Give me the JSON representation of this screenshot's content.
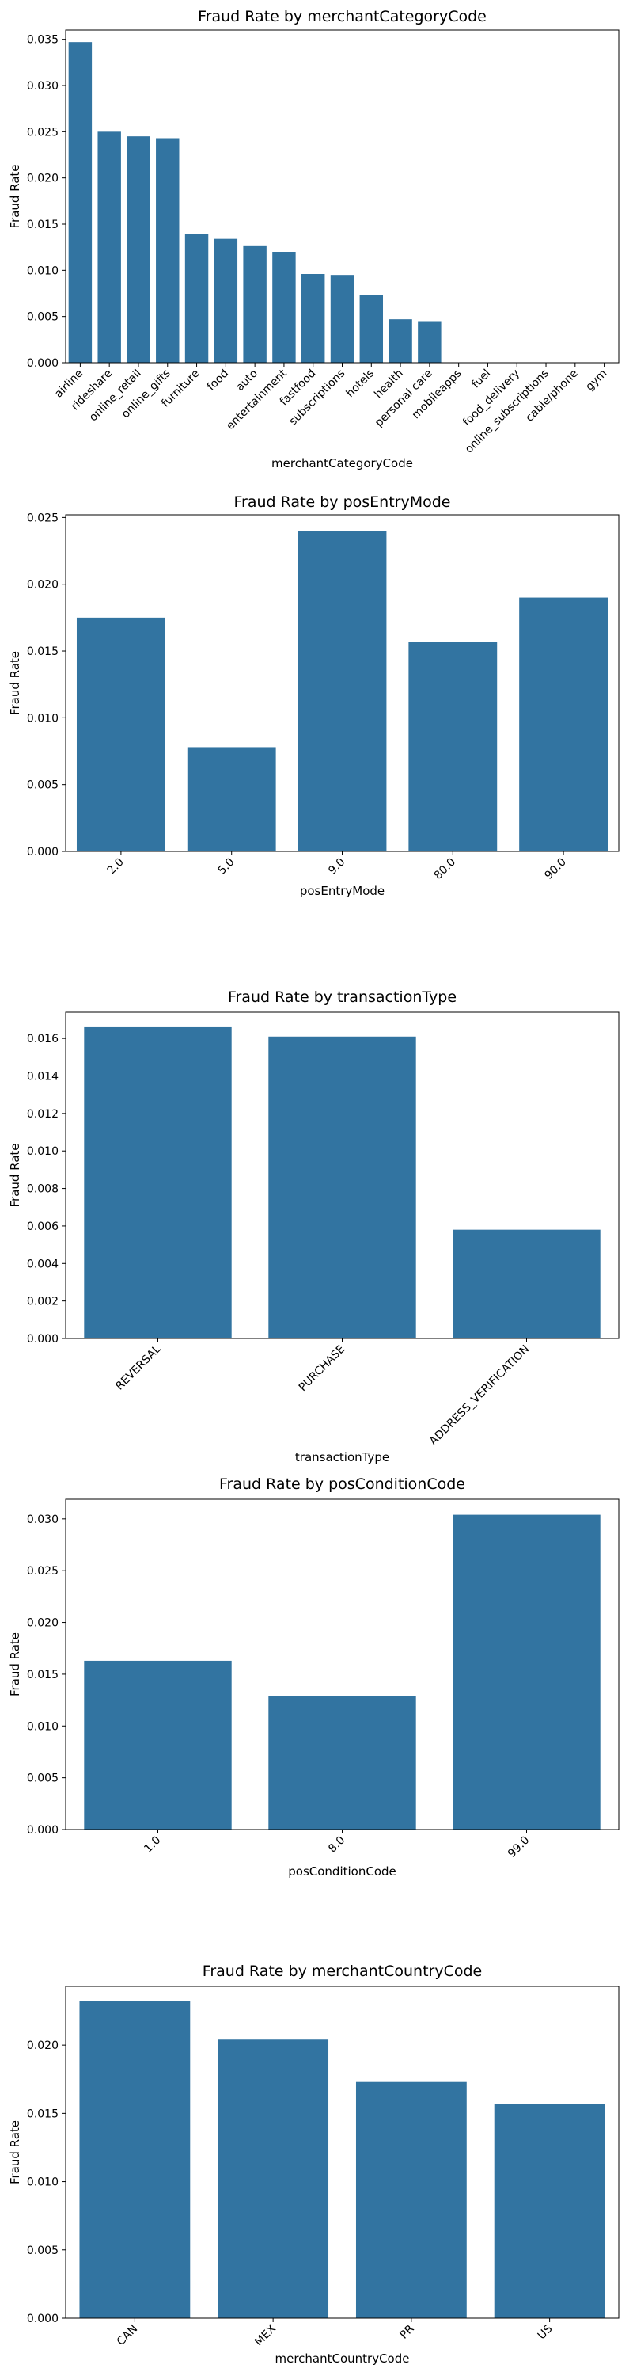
{
  "chart_data": [
    {
      "type": "bar",
      "title": "Fraud Rate by merchantCategoryCode",
      "xlabel": "merchantCategoryCode",
      "ylabel": "Fraud Rate",
      "ylim": [
        0,
        0.036
      ],
      "yticks": [
        "0.000",
        "0.005",
        "0.010",
        "0.015",
        "0.020",
        "0.025",
        "0.030",
        "0.035"
      ],
      "categories": [
        "airline",
        "rideshare",
        "online_retail",
        "online_gifts",
        "furniture",
        "food",
        "auto",
        "entertainment",
        "fastfood",
        "subscriptions",
        "hotels",
        "health",
        "personal care",
        "mobileapps",
        "fuel",
        "food_delivery",
        "online_subscriptions",
        "cable/phone",
        "gym"
      ],
      "values": [
        0.0347,
        0.025,
        0.0245,
        0.0243,
        0.0139,
        0.0134,
        0.0127,
        0.012,
        0.0096,
        0.0095,
        0.0073,
        0.0047,
        0.0045,
        0,
        0,
        0,
        0,
        0,
        0
      ]
    },
    {
      "type": "bar",
      "title": "Fraud Rate by posEntryMode",
      "xlabel": "posEntryMode",
      "ylabel": "Fraud Rate",
      "ylim": [
        0,
        0.0252
      ],
      "yticks": [
        "0.000",
        "0.005",
        "0.010",
        "0.015",
        "0.020",
        "0.025"
      ],
      "categories": [
        "2.0",
        "5.0",
        "9.0",
        "80.0",
        "90.0"
      ],
      "values": [
        0.0175,
        0.0078,
        0.024,
        0.0157,
        0.019
      ]
    },
    {
      "type": "bar",
      "title": "Fraud Rate by transactionType",
      "xlabel": "transactionType",
      "ylabel": "Fraud Rate",
      "ylim": [
        0,
        0.0174
      ],
      "yticks": [
        "0.000",
        "0.002",
        "0.004",
        "0.006",
        "0.008",
        "0.010",
        "0.012",
        "0.014",
        "0.016"
      ],
      "categories": [
        "REVERSAL",
        "PURCHASE",
        "ADDRESS_VERIFICATION"
      ],
      "values": [
        0.0166,
        0.0161,
        0.0058
      ]
    },
    {
      "type": "bar",
      "title": "Fraud Rate by posConditionCode",
      "xlabel": "posConditionCode",
      "ylabel": "Fraud Rate",
      "ylim": [
        0,
        0.0319
      ],
      "yticks": [
        "0.000",
        "0.005",
        "0.010",
        "0.015",
        "0.020",
        "0.025",
        "0.030"
      ],
      "categories": [
        "1.0",
        "8.0",
        "99.0"
      ],
      "values": [
        0.0163,
        0.0129,
        0.0304
      ]
    },
    {
      "type": "bar",
      "title": "Fraud Rate by merchantCountryCode",
      "xlabel": "merchantCountryCode",
      "ylabel": "Fraud Rate",
      "ylim": [
        0,
        0.0243
      ],
      "yticks": [
        "0.000",
        "0.005",
        "0.010",
        "0.015",
        "0.020"
      ],
      "categories": [
        "CAN",
        "MEX",
        "PR",
        "US"
      ],
      "values": [
        0.0232,
        0.0204,
        0.0173,
        0.0157
      ]
    }
  ]
}
